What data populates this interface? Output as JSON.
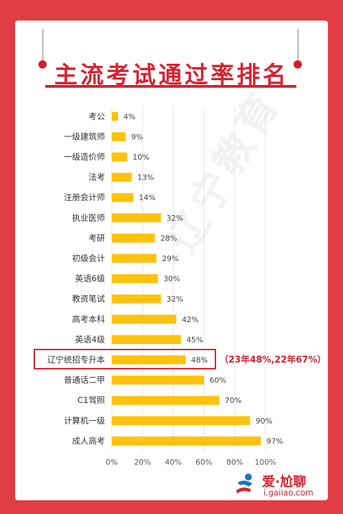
{
  "title": "主流考试通过率排名",
  "watermark": "辽宁教育",
  "annotation": "（23年48%,22年67%）",
  "logo": {
    "brand": "爱·尬聊",
    "site": "i.gaiiao.com"
  },
  "colors": {
    "bar": "#ffc20e",
    "accent": "#d7222f",
    "background": "#e23c44"
  },
  "highlight_category": "辽宁统招专升本",
  "chart_data": {
    "type": "bar",
    "orientation": "horizontal",
    "title": "主流考试通过率排名",
    "categories": [
      "考公",
      "一级建筑师",
      "一级造价师",
      "法考",
      "注册会计师",
      "执业医师",
      "考研",
      "初级会计",
      "英语6级",
      "教资笔试",
      "高考本科",
      "英语4级",
      "辽宁统招专升本",
      "普通话二甲",
      "C1驾照",
      "计算机一级",
      "成人高考"
    ],
    "values": [
      4,
      9,
      10,
      13,
      14,
      32,
      28,
      29,
      30,
      32,
      42,
      45,
      48,
      60,
      70,
      90,
      97
    ],
    "value_labels": [
      "4%",
      "9%",
      "10%",
      "13%",
      "14%",
      "32%",
      "28%",
      "29%",
      "30%",
      "32%",
      "42%",
      "45%",
      "48%",
      "60%",
      "70%",
      "90%",
      "97%"
    ],
    "xlim": [
      0,
      100
    ],
    "x_ticks": [
      0,
      20,
      40,
      60,
      80,
      100
    ],
    "x_tick_labels": [
      "0%",
      "20%",
      "40%",
      "60%",
      "80%",
      "100%"
    ],
    "grid": true
  }
}
